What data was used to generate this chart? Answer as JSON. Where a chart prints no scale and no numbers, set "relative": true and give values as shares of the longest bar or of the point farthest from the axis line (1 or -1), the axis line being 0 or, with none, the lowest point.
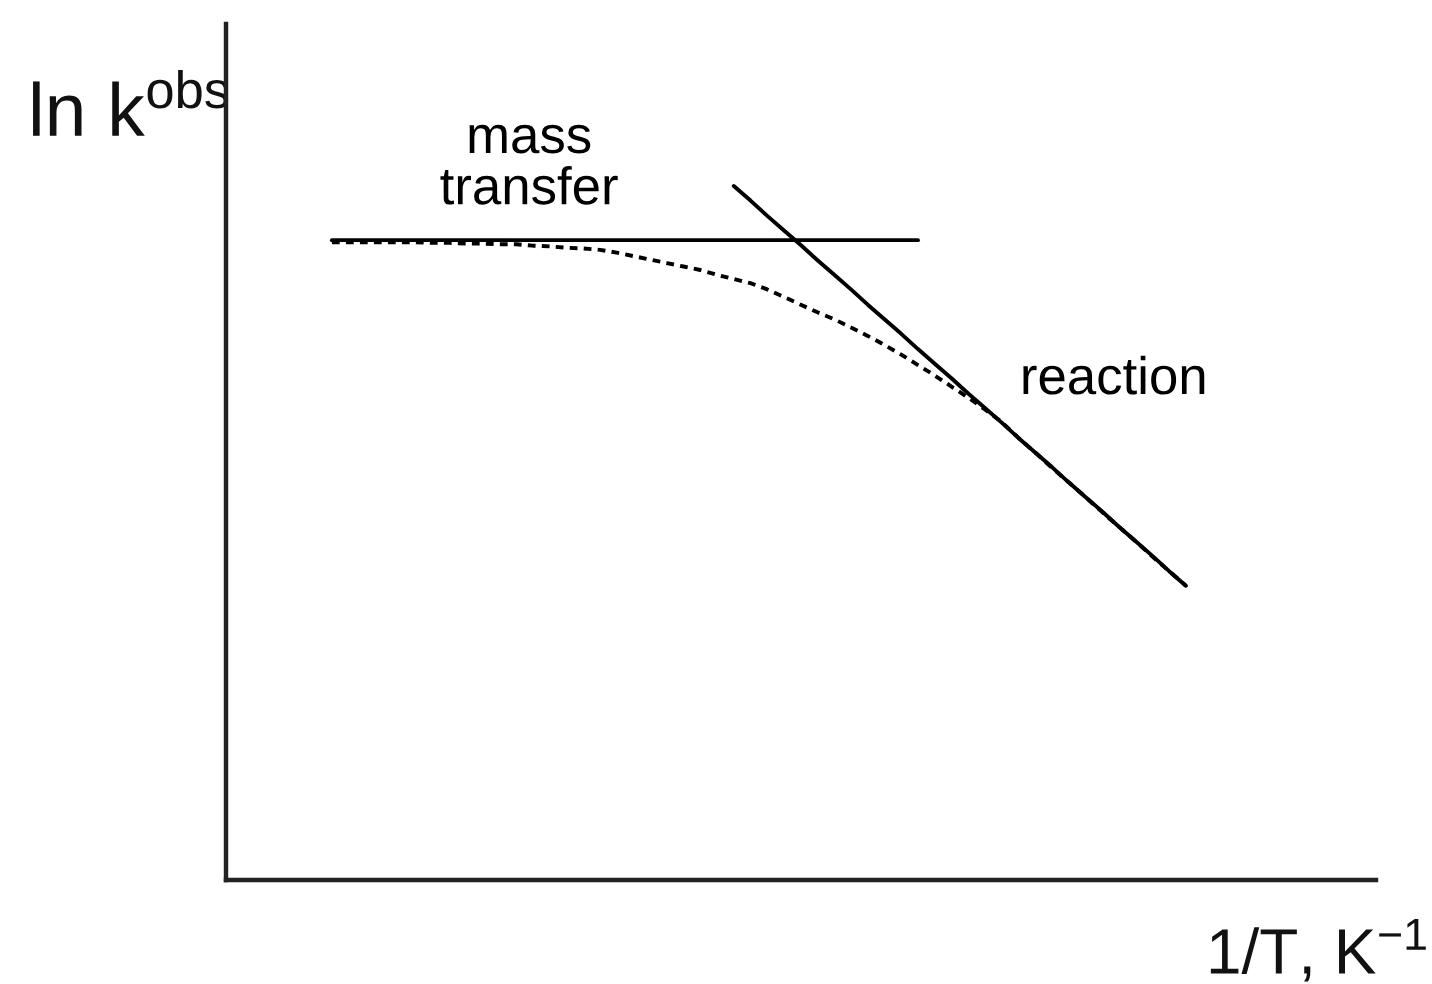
{
  "chart_data": {
    "type": "line",
    "relative": true,
    "xlabel": "1/T, K$^{−1}$",
    "ylabel": "ln k$^{obs}$",
    "categories": [
      null,
      null,
      null,
      null,
      null,
      null,
      null,
      null,
      null,
      null,
      null,
      null,
      null,
      null,
      null,
      null,
      null,
      null,
      null,
      null,
      null,
      null,
      null,
      null,
      null,
      null,
      null,
      null,
      null,
      null,
      null,
      null,
      null,
      null,
      null,
      null,
      null,
      null,
      null,
      null,
      null,
      null,
      null,
      null,
      null,
      null,
      null,
      null,
      null,
      null,
      null,
      null
    ],
    "series": [
      {
        "name": "mass\ntransfer",
        "color": "#000000",
        "line_style": "solid",
        "values": [
          0.922,
          0.922,
          0.922,
          0.922,
          0.922,
          0.922,
          0.922,
          0.922,
          0.922,
          0.922,
          0.922,
          0.922,
          0.922,
          0.922,
          0.922,
          0.922,
          0.922,
          0.922,
          0.922,
          0.922,
          0.922,
          0.922,
          0.922,
          0.922,
          0.922,
          0.922,
          0.922,
          0.922,
          0.922,
          0.922,
          0.922,
          0.922,
          0.922,
          0.922,
          0.922,
          0.922,
          null,
          null,
          null,
          null,
          null,
          null,
          null,
          null,
          null,
          null,
          null,
          null,
          null,
          null,
          null,
          null
        ]
      },
      {
        "name": "reaction",
        "color": "#000000",
        "line_style": "solid",
        "values": [
          null,
          null,
          null,
          null,
          null,
          null,
          null,
          null,
          null,
          null,
          null,
          null,
          null,
          null,
          null,
          null,
          null,
          null,
          null,
          null,
          null,
          null,
          null,
          null,
          1.0,
          0.979,
          0.957,
          0.936,
          0.915,
          0.893,
          0.872,
          0.851,
          0.829,
          0.808,
          0.787,
          0.765,
          0.744,
          0.723,
          0.701,
          0.68,
          0.659,
          0.637,
          0.616,
          0.595,
          0.573,
          0.552,
          0.531,
          0.509,
          0.488,
          0.467,
          0.445,
          0.424
        ]
      },
      {
        "color": "#000000",
        "line_style": "dotted",
        "values": [
          0.919,
          0.919,
          0.919,
          0.919,
          0.919,
          0.919,
          0.918,
          0.918,
          0.917,
          0.917,
          0.916,
          0.916,
          0.914,
          0.913,
          0.911,
          0.91,
          0.908,
          0.904,
          0.899,
          0.894,
          0.889,
          0.884,
          0.879,
          0.872,
          0.866,
          0.86,
          0.851,
          0.84,
          0.829,
          0.818,
          0.808,
          0.796,
          0.784,
          0.771,
          0.757,
          0.742,
          0.727,
          0.711,
          0.695,
          0.678,
          0.66,
          0.637,
          0.616,
          0.594,
          0.573,
          0.552,
          0.53,
          0.509,
          0.488,
          0.466,
          0.445,
          0.424
        ]
      }
    ]
  }
}
